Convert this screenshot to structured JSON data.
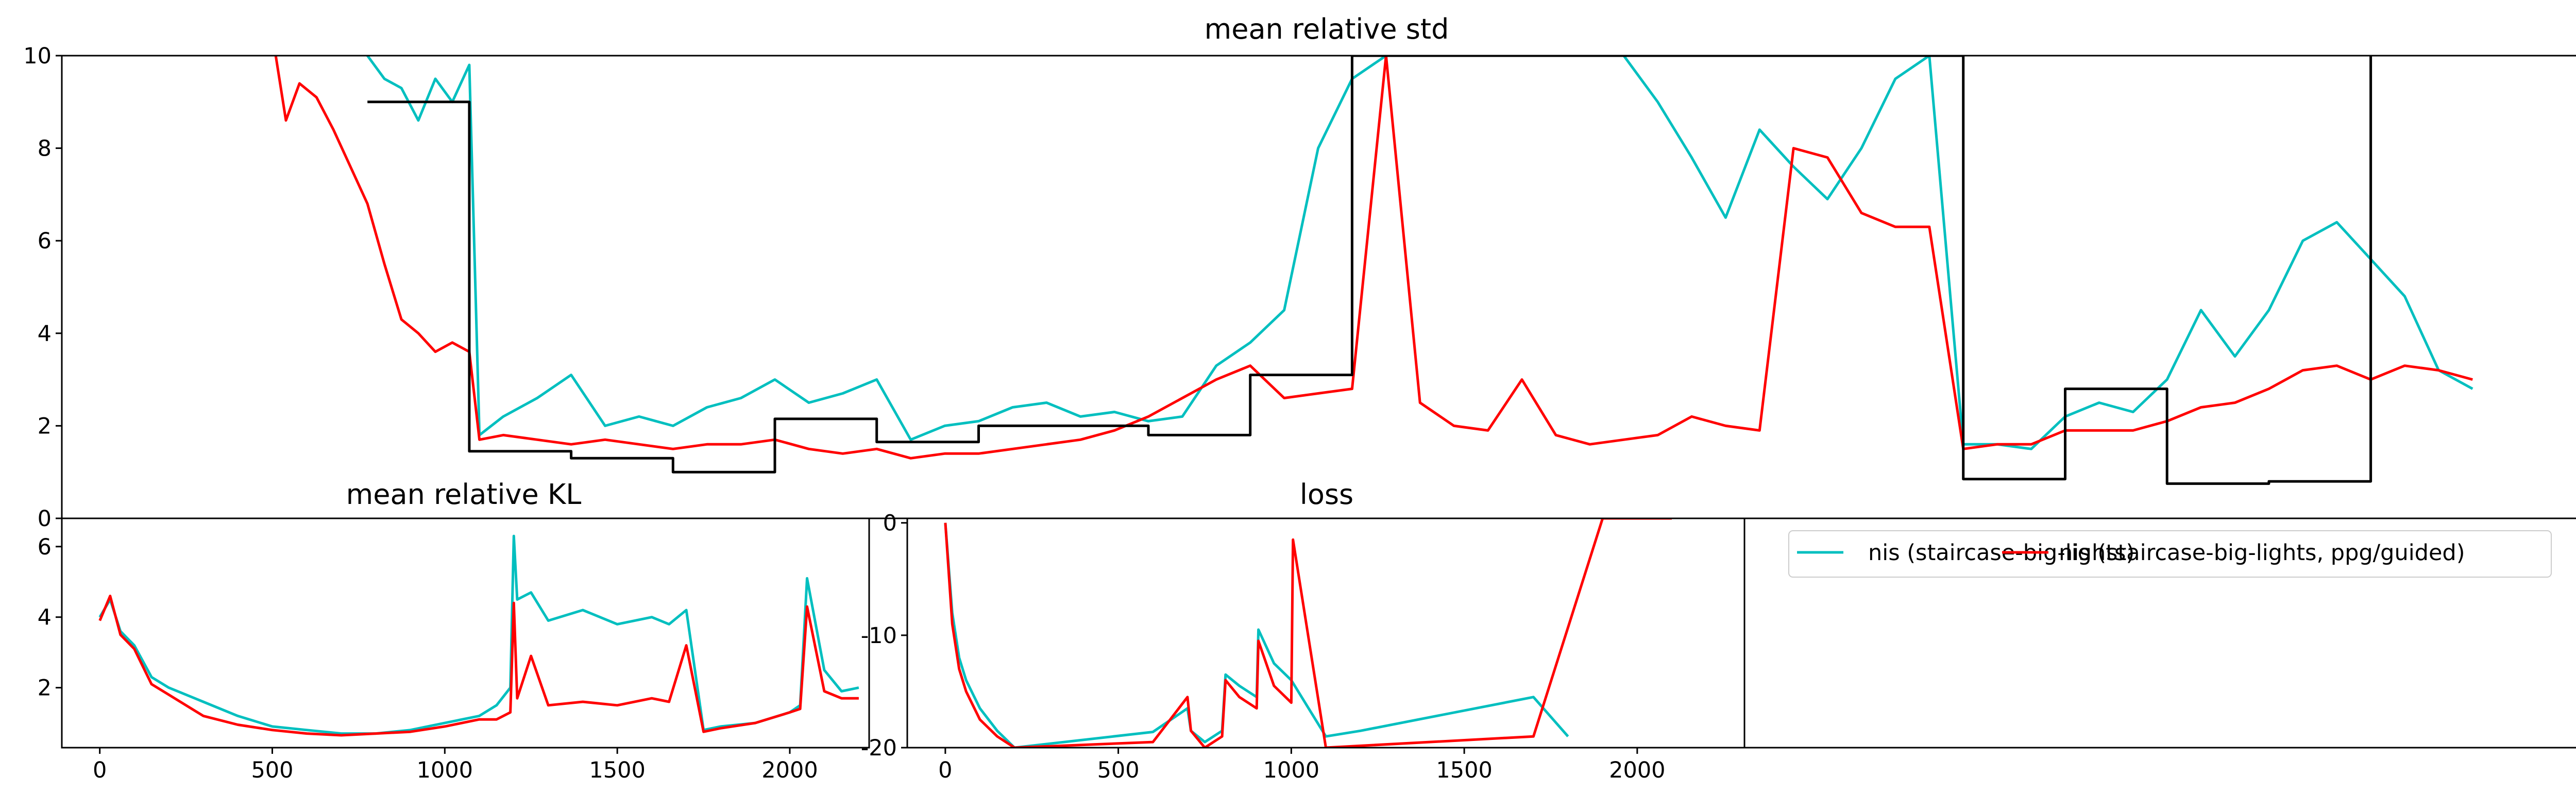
{
  "chart_data": [
    {
      "type": "line",
      "title": "mean relative std",
      "xlim": [
        -100,
        7350
      ],
      "ylim": [
        0,
        10
      ],
      "yticks": [
        "0",
        "2",
        "4",
        "6",
        "8",
        "10"
      ],
      "series": [
        {
          "name": "nis (staircase-big-lights)",
          "color": "#00bfbf",
          "x": [
            800,
            850,
            900,
            950,
            1000,
            1050,
            1100,
            1130,
            1200,
            1300,
            1400,
            1500,
            1600,
            1700,
            1800,
            1900,
            2000,
            2100,
            2200,
            2300,
            2400,
            2500,
            2600,
            2700,
            2800,
            2900,
            3000,
            3100,
            3200,
            3300,
            3400,
            3500,
            3600,
            3700,
            3800,
            3900,
            4000,
            4100,
            4200,
            4300,
            4400,
            4500,
            4600,
            4700,
            4800,
            4900,
            5000,
            5100,
            5200,
            5300,
            5400,
            5500,
            5600,
            5700,
            5800,
            5900,
            6000,
            6100,
            6200,
            6300,
            6400,
            6500,
            6600,
            6700,
            6800,
            6900,
            7000
          ],
          "y": [
            10,
            9.5,
            9.3,
            8.6,
            9.5,
            9.0,
            9.8,
            1.8,
            2.2,
            2.6,
            3.1,
            2.0,
            2.2,
            2.0,
            2.4,
            2.6,
            3.0,
            2.5,
            2.7,
            3.0,
            1.7,
            2.0,
            2.1,
            2.4,
            2.5,
            2.2,
            2.3,
            2.1,
            2.2,
            3.3,
            3.8,
            4.5,
            8.0,
            9.5,
            10,
            10,
            10,
            10,
            10,
            10,
            10,
            10,
            9.0,
            7.8,
            6.5,
            8.4,
            7.6,
            6.9,
            8.0,
            9.5,
            10,
            1.6,
            1.6,
            1.5,
            2.2,
            2.5,
            2.3,
            3.0,
            4.5,
            3.5,
            4.5,
            6.0,
            6.4,
            5.6,
            4.8,
            3.2,
            2.8
          ]
        },
        {
          "name": "nis (staircase-big-lights, ppg/guided)",
          "color": "#ff0000",
          "x": [
            530,
            560,
            600,
            650,
            700,
            750,
            800,
            850,
            900,
            950,
            1000,
            1050,
            1100,
            1130,
            1200,
            1300,
            1400,
            1500,
            1600,
            1700,
            1800,
            1900,
            2000,
            2100,
            2200,
            2300,
            2400,
            2500,
            2600,
            2700,
            2800,
            2900,
            3000,
            3100,
            3200,
            3300,
            3400,
            3500,
            3600,
            3700,
            3800,
            3900,
            4000,
            4100,
            4200,
            4300,
            4400,
            4500,
            4600,
            4700,
            4800,
            4900,
            5000,
            5100,
            5200,
            5300,
            5400,
            5500,
            5600,
            5700,
            5800,
            5900,
            6000,
            6100,
            6200,
            6300,
            6400,
            6500,
            6600,
            6700,
            6800,
            6900,
            7000
          ],
          "y": [
            10,
            8.6,
            9.4,
            9.1,
            8.4,
            7.6,
            6.8,
            5.5,
            4.3,
            4.0,
            3.6,
            3.8,
            3.6,
            1.7,
            1.8,
            1.7,
            1.6,
            1.7,
            1.6,
            1.5,
            1.6,
            1.6,
            1.7,
            1.5,
            1.4,
            1.5,
            1.3,
            1.4,
            1.4,
            1.5,
            1.6,
            1.7,
            1.9,
            2.2,
            2.6,
            3.0,
            3.3,
            2.6,
            2.7,
            2.8,
            10,
            2.5,
            2.0,
            1.9,
            3.0,
            1.8,
            1.6,
            1.7,
            1.8,
            2.2,
            2.0,
            1.9,
            8.0,
            7.8,
            6.6,
            6.3,
            6.3,
            1.5,
            1.6,
            1.6,
            1.9,
            1.9,
            1.9,
            2.1,
            2.4,
            2.5,
            2.8,
            3.2,
            3.3,
            3.0,
            3.3,
            3.2,
            3.0
          ]
        },
        {
          "name": "",
          "color": "#000000",
          "step": true,
          "x": [
            800,
            1100,
            1100,
            1400,
            1400,
            1700,
            1700,
            2000,
            2000,
            2300,
            2300,
            2600,
            2600,
            3100,
            3100,
            3400,
            3400,
            3700,
            3700,
            4000,
            4000,
            4300,
            4300,
            5500,
            5500,
            5800,
            5800,
            6100,
            6100,
            6400,
            6400,
            6700,
            6700
          ],
          "y": [
            9.0,
            9.0,
            1.45,
            1.45,
            1.3,
            1.3,
            1.0,
            1.0,
            2.15,
            2.15,
            1.65,
            1.65,
            2.0,
            2.0,
            1.8,
            1.8,
            3.1,
            3.1,
            10,
            10,
            10,
            10,
            10,
            10,
            0.85,
            0.85,
            2.8,
            2.8,
            0.75,
            0.75,
            0.8,
            0.8,
            10
          ]
        }
      ]
    },
    {
      "type": "line",
      "title": "mean relative KL",
      "xlim": [
        -110,
        2230
      ],
      "ylim": [
        0.3,
        6.8
      ],
      "xticks": [
        "0",
        "500",
        "1000",
        "1500",
        "2000"
      ],
      "yticks": [
        "2",
        "4",
        "6"
      ],
      "series": [
        {
          "name": "nis (staircase-big-lights)",
          "color": "#00bfbf",
          "x": [
            0,
            30,
            60,
            100,
            150,
            200,
            300,
            400,
            500,
            600,
            700,
            800,
            900,
            1000,
            1100,
            1150,
            1190,
            1200,
            1210,
            1250,
            1300,
            1400,
            1500,
            1600,
            1650,
            1700,
            1750,
            1800,
            1900,
            2000,
            2030,
            2050,
            2100,
            2150,
            2200
          ],
          "y": [
            4.0,
            4.5,
            3.6,
            3.2,
            2.3,
            2.0,
            1.6,
            1.2,
            0.9,
            0.8,
            0.7,
            0.7,
            0.8,
            1.0,
            1.2,
            1.5,
            2.0,
            6.3,
            4.5,
            4.7,
            3.9,
            4.2,
            3.8,
            4.0,
            3.8,
            4.2,
            0.8,
            0.9,
            1.0,
            1.3,
            1.5,
            5.1,
            2.5,
            1.9,
            2.0
          ]
        },
        {
          "name": "nis (staircase-big-lights, ppg/guided)",
          "color": "#ff0000",
          "x": [
            0,
            30,
            60,
            100,
            150,
            200,
            300,
            400,
            500,
            600,
            700,
            800,
            900,
            1000,
            1100,
            1150,
            1190,
            1200,
            1210,
            1250,
            1300,
            1400,
            1500,
            1600,
            1650,
            1700,
            1750,
            1800,
            1900,
            2000,
            2030,
            2050,
            2100,
            2150,
            2200
          ],
          "y": [
            3.9,
            4.6,
            3.5,
            3.1,
            2.1,
            1.8,
            1.2,
            0.95,
            0.8,
            0.7,
            0.65,
            0.7,
            0.75,
            0.9,
            1.1,
            1.1,
            1.3,
            4.4,
            1.7,
            2.9,
            1.5,
            1.6,
            1.5,
            1.7,
            1.6,
            3.2,
            0.75,
            0.85,
            1.0,
            1.3,
            1.4,
            4.3,
            1.9,
            1.7,
            1.7
          ]
        }
      ]
    },
    {
      "type": "line",
      "title": "loss",
      "xlim": [
        -110,
        2310
      ],
      "ylim": [
        -20,
        0.4
      ],
      "xticks": [
        "0",
        "500",
        "1000",
        "1500",
        "2000"
      ],
      "yticks": [
        "0",
        "-10",
        "-20"
      ],
      "series": [
        {
          "name": "nis (staircase-big-lights)",
          "color": "#00bfbf",
          "x": [
            0,
            20,
            40,
            60,
            100,
            150,
            200,
            600,
            700,
            710,
            750,
            800,
            810,
            850,
            900,
            905,
            950,
            1000,
            1100,
            1200,
            1700,
            1800
          ],
          "y": [
            0,
            -8,
            -12,
            -14,
            -16.5,
            -18.5,
            -20,
            -18.6,
            -16.5,
            -18.5,
            -19.5,
            -18.5,
            -13.5,
            -14.5,
            -15.5,
            -9.5,
            -12.5,
            -14,
            -19,
            -18.5,
            -15.5,
            -19
          ]
        },
        {
          "name": "nis (staircase-big-lights, ppg/guided)",
          "color": "#ff0000",
          "x": [
            0,
            20,
            40,
            60,
            100,
            150,
            200,
            600,
            700,
            710,
            750,
            800,
            810,
            850,
            900,
            905,
            950,
            1000,
            1005,
            1100,
            1700,
            1900,
            2000,
            2100
          ],
          "y": [
            0,
            -9,
            -13,
            -15,
            -17.5,
            -19,
            -20,
            -19.5,
            -15.5,
            -18.5,
            -20,
            -19,
            -14,
            -15.5,
            -16.5,
            -10.5,
            -14.5,
            -16,
            -1.5,
            -20,
            -19,
            0.4,
            0.4,
            0.4
          ]
        }
      ]
    }
  ],
  "legend": {
    "entries": [
      {
        "label": "nis (staircase-big-lights)",
        "color": "#00bfbf"
      },
      {
        "label": "nis (staircase-big-lights, ppg/guided)",
        "color": "#ff0000"
      }
    ],
    "placement": "top-left of fourth panel"
  }
}
